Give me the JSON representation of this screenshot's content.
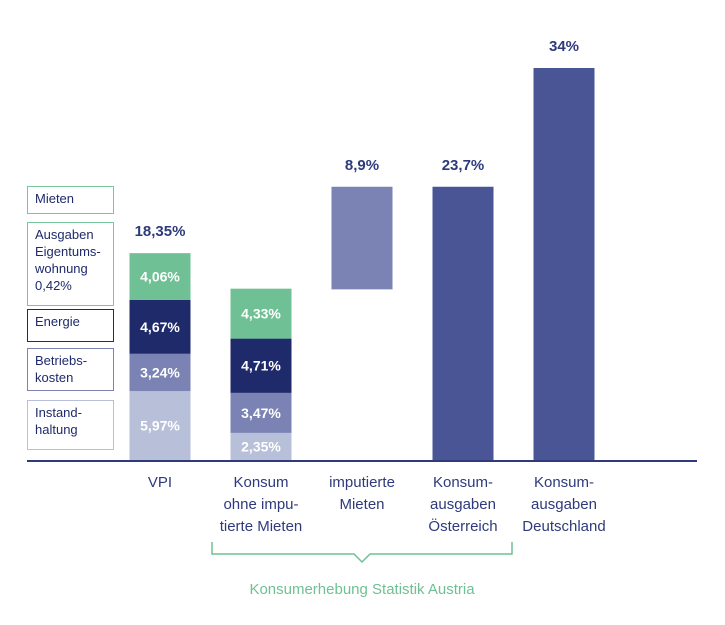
{
  "chart_data": {
    "type": "bar",
    "title": "",
    "xlabel": "",
    "ylabel": "",
    "ylim": [
      0,
      34
    ],
    "grid": false,
    "categories": [
      "VPI",
      "Konsum ohne imputierte Mieten",
      "imputierte Mieten",
      "Konsumausgaben Österreich",
      "Konsumausgaben Deutschland"
    ],
    "category_labels": [
      [
        "VPI"
      ],
      [
        "Konsum",
        "ohne impu-",
        "tierte Mieten"
      ],
      [
        "imputierte",
        "Mieten"
      ],
      [
        "Konsum-",
        "ausgaben",
        "Österreich"
      ],
      [
        "Konsum-",
        "ausgaben",
        "Deutschland"
      ]
    ],
    "stacked_bars": [
      {
        "category": "VPI",
        "total_label": "18,35%",
        "segments": [
          {
            "name": "Instandhaltung",
            "value": 5.97,
            "label": "5,97%",
            "color": "#b8bfd8"
          },
          {
            "name": "Betriebskosten",
            "value": 3.24,
            "label": "3,24%",
            "color": "#7a83b3"
          },
          {
            "name": "Energie",
            "value": 4.67,
            "label": "4,67%",
            "color": "#1f2a6b"
          },
          {
            "name": "Mieten",
            "value": 4.06,
            "label": "4,06%",
            "color": "#6fc094"
          }
        ]
      },
      {
        "category": "Konsum ohne imputierte Mieten",
        "total_label": "",
        "segments": [
          {
            "name": "Instandhaltung",
            "value": 2.35,
            "label": "2,35%",
            "color": "#b8bfd8"
          },
          {
            "name": "Betriebskosten",
            "value": 3.47,
            "label": "3,47%",
            "color": "#7a83b3"
          },
          {
            "name": "Energie",
            "value": 4.71,
            "label": "4,71%",
            "color": "#1f2a6b"
          },
          {
            "name": "Mieten",
            "value": 4.33,
            "label": "4,33%",
            "color": "#6fc094"
          }
        ]
      }
    ],
    "simple_bars": [
      {
        "category": "imputierte Mieten",
        "value": 8.9,
        "label": "8,9%",
        "floating_top": 23.7,
        "color": "#7a83b3"
      },
      {
        "category": "Konsumausgaben Österreich",
        "value": 23.7,
        "label": "23,7%",
        "color": "#4a5595"
      },
      {
        "category": "Konsumausgaben Deutschland",
        "value": 34,
        "label": "34%",
        "color": "#4a5595"
      }
    ],
    "legend": [
      {
        "lines": [
          "Mieten"
        ]
      },
      {
        "lines": [
          "Ausgaben",
          "Eigentums-",
          "wohnung",
          "0,42%"
        ]
      },
      {
        "lines": [
          "Energie"
        ]
      },
      {
        "lines": [
          "Betriebs-",
          "kosten"
        ]
      },
      {
        "lines": [
          "Instand-",
          "haltung"
        ]
      }
    ],
    "bracket_label": "Konsumerhebung Statistik Austria",
    "colors": {
      "axis": "#2e3a7c",
      "text": "#2e3a7c",
      "bracket": "#6fc094",
      "label_light": "#ffffff"
    }
  }
}
